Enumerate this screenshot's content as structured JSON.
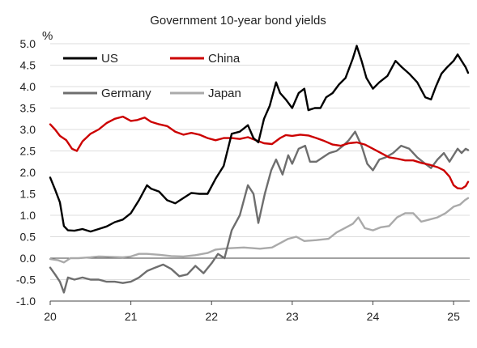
{
  "chart_data": {
    "type": "line",
    "title": "Government 10-year bond yields",
    "ylabel": "%",
    "ylim": [
      -1.0,
      5.0
    ],
    "yticks": [
      -1.0,
      -0.5,
      0.0,
      0.5,
      1.0,
      1.5,
      2.0,
      2.5,
      3.0,
      3.5,
      4.0,
      4.5,
      5.0
    ],
    "ytick_labels": [
      "-1.0",
      "-0.5",
      "0.0",
      "0.5",
      "1.0",
      "1.5",
      "2.0",
      "2.5",
      "3.0",
      "3.5",
      "4.0",
      "4.5",
      "5.0"
    ],
    "xlim": [
      2020.0,
      2025.2
    ],
    "xticks": [
      2020,
      2021,
      2022,
      2023,
      2024,
      2025
    ],
    "xtick_labels": [
      "20",
      "21",
      "22",
      "23",
      "24",
      "25"
    ],
    "grid": "horizontal",
    "legend_placement": "top-left",
    "series": [
      {
        "name": "US",
        "color": "#000000",
        "points": [
          [
            2020.0,
            1.88
          ],
          [
            2020.06,
            1.6
          ],
          [
            2020.12,
            1.3
          ],
          [
            2020.17,
            0.75
          ],
          [
            2020.22,
            0.65
          ],
          [
            2020.3,
            0.64
          ],
          [
            2020.4,
            0.68
          ],
          [
            2020.5,
            0.62
          ],
          [
            2020.6,
            0.68
          ],
          [
            2020.7,
            0.74
          ],
          [
            2020.8,
            0.84
          ],
          [
            2020.9,
            0.9
          ],
          [
            2021.0,
            1.05
          ],
          [
            2021.1,
            1.35
          ],
          [
            2021.2,
            1.7
          ],
          [
            2021.25,
            1.62
          ],
          [
            2021.35,
            1.55
          ],
          [
            2021.45,
            1.35
          ],
          [
            2021.55,
            1.28
          ],
          [
            2021.65,
            1.4
          ],
          [
            2021.75,
            1.52
          ],
          [
            2021.85,
            1.5
          ],
          [
            2021.95,
            1.5
          ],
          [
            2022.05,
            1.85
          ],
          [
            2022.15,
            2.15
          ],
          [
            2022.25,
            2.9
          ],
          [
            2022.35,
            2.95
          ],
          [
            2022.45,
            3.1
          ],
          [
            2022.52,
            2.8
          ],
          [
            2022.58,
            2.7
          ],
          [
            2022.65,
            3.25
          ],
          [
            2022.72,
            3.55
          ],
          [
            2022.8,
            4.1
          ],
          [
            2022.85,
            3.85
          ],
          [
            2022.92,
            3.7
          ],
          [
            2023.0,
            3.5
          ],
          [
            2023.08,
            3.85
          ],
          [
            2023.15,
            3.95
          ],
          [
            2023.2,
            3.45
          ],
          [
            2023.28,
            3.5
          ],
          [
            2023.35,
            3.5
          ],
          [
            2023.42,
            3.75
          ],
          [
            2023.5,
            3.85
          ],
          [
            2023.58,
            4.05
          ],
          [
            2023.66,
            4.2
          ],
          [
            2023.75,
            4.65
          ],
          [
            2023.8,
            4.95
          ],
          [
            2023.86,
            4.6
          ],
          [
            2023.92,
            4.2
          ],
          [
            2024.0,
            3.95
          ],
          [
            2024.08,
            4.1
          ],
          [
            2024.18,
            4.25
          ],
          [
            2024.28,
            4.6
          ],
          [
            2024.36,
            4.45
          ],
          [
            2024.45,
            4.3
          ],
          [
            2024.55,
            4.1
          ],
          [
            2024.65,
            3.75
          ],
          [
            2024.72,
            3.7
          ],
          [
            2024.78,
            4.0
          ],
          [
            2024.85,
            4.3
          ],
          [
            2024.92,
            4.45
          ],
          [
            2025.0,
            4.6
          ],
          [
            2025.05,
            4.75
          ],
          [
            2025.1,
            4.6
          ],
          [
            2025.15,
            4.45
          ],
          [
            2025.18,
            4.32
          ]
        ]
      },
      {
        "name": "China",
        "color": "#cc0000",
        "points": [
          [
            2020.0,
            3.12
          ],
          [
            2020.06,
            3.0
          ],
          [
            2020.12,
            2.85
          ],
          [
            2020.2,
            2.75
          ],
          [
            2020.27,
            2.55
          ],
          [
            2020.33,
            2.5
          ],
          [
            2020.4,
            2.72
          ],
          [
            2020.5,
            2.9
          ],
          [
            2020.6,
            3.0
          ],
          [
            2020.7,
            3.15
          ],
          [
            2020.8,
            3.25
          ],
          [
            2020.9,
            3.3
          ],
          [
            2021.0,
            3.2
          ],
          [
            2021.08,
            3.22
          ],
          [
            2021.17,
            3.28
          ],
          [
            2021.25,
            3.18
          ],
          [
            2021.35,
            3.12
          ],
          [
            2021.45,
            3.08
          ],
          [
            2021.55,
            2.95
          ],
          [
            2021.65,
            2.88
          ],
          [
            2021.75,
            2.92
          ],
          [
            2021.85,
            2.88
          ],
          [
            2021.95,
            2.8
          ],
          [
            2022.05,
            2.75
          ],
          [
            2022.15,
            2.8
          ],
          [
            2022.25,
            2.8
          ],
          [
            2022.35,
            2.78
          ],
          [
            2022.45,
            2.82
          ],
          [
            2022.55,
            2.75
          ],
          [
            2022.65,
            2.68
          ],
          [
            2022.75,
            2.66
          ],
          [
            2022.85,
            2.8
          ],
          [
            2022.92,
            2.87
          ],
          [
            2023.0,
            2.85
          ],
          [
            2023.1,
            2.88
          ],
          [
            2023.2,
            2.86
          ],
          [
            2023.3,
            2.8
          ],
          [
            2023.4,
            2.73
          ],
          [
            2023.5,
            2.65
          ],
          [
            2023.6,
            2.62
          ],
          [
            2023.7,
            2.68
          ],
          [
            2023.8,
            2.7
          ],
          [
            2023.9,
            2.65
          ],
          [
            2024.0,
            2.55
          ],
          [
            2024.1,
            2.45
          ],
          [
            2024.2,
            2.35
          ],
          [
            2024.3,
            2.32
          ],
          [
            2024.4,
            2.28
          ],
          [
            2024.5,
            2.28
          ],
          [
            2024.6,
            2.22
          ],
          [
            2024.7,
            2.18
          ],
          [
            2024.8,
            2.12
          ],
          [
            2024.88,
            2.05
          ],
          [
            2024.95,
            1.9
          ],
          [
            2025.0,
            1.7
          ],
          [
            2025.05,
            1.63
          ],
          [
            2025.1,
            1.62
          ],
          [
            2025.15,
            1.68
          ],
          [
            2025.18,
            1.78
          ]
        ]
      },
      {
        "name": "Germany",
        "color": "#6e6e6e",
        "points": [
          [
            2020.0,
            -0.22
          ],
          [
            2020.06,
            -0.38
          ],
          [
            2020.12,
            -0.55
          ],
          [
            2020.17,
            -0.8
          ],
          [
            2020.22,
            -0.45
          ],
          [
            2020.3,
            -0.5
          ],
          [
            2020.4,
            -0.45
          ],
          [
            2020.5,
            -0.5
          ],
          [
            2020.6,
            -0.5
          ],
          [
            2020.7,
            -0.55
          ],
          [
            2020.8,
            -0.55
          ],
          [
            2020.9,
            -0.58
          ],
          [
            2021.0,
            -0.55
          ],
          [
            2021.1,
            -0.45
          ],
          [
            2021.2,
            -0.3
          ],
          [
            2021.3,
            -0.22
          ],
          [
            2021.4,
            -0.15
          ],
          [
            2021.5,
            -0.25
          ],
          [
            2021.6,
            -0.42
          ],
          [
            2021.7,
            -0.38
          ],
          [
            2021.8,
            -0.18
          ],
          [
            2021.9,
            -0.35
          ],
          [
            2022.0,
            -0.12
          ],
          [
            2022.08,
            0.1
          ],
          [
            2022.16,
            0.0
          ],
          [
            2022.25,
            0.65
          ],
          [
            2022.35,
            1.0
          ],
          [
            2022.45,
            1.7
          ],
          [
            2022.52,
            1.5
          ],
          [
            2022.58,
            0.82
          ],
          [
            2022.66,
            1.5
          ],
          [
            2022.74,
            2.05
          ],
          [
            2022.8,
            2.3
          ],
          [
            2022.88,
            1.95
          ],
          [
            2022.95,
            2.4
          ],
          [
            2023.0,
            2.2
          ],
          [
            2023.08,
            2.55
          ],
          [
            2023.16,
            2.62
          ],
          [
            2023.22,
            2.25
          ],
          [
            2023.3,
            2.25
          ],
          [
            2023.38,
            2.35
          ],
          [
            2023.46,
            2.45
          ],
          [
            2023.55,
            2.5
          ],
          [
            2023.63,
            2.62
          ],
          [
            2023.7,
            2.75
          ],
          [
            2023.78,
            2.95
          ],
          [
            2023.86,
            2.62
          ],
          [
            2023.93,
            2.2
          ],
          [
            2024.0,
            2.05
          ],
          [
            2024.08,
            2.3
          ],
          [
            2024.16,
            2.35
          ],
          [
            2024.25,
            2.45
          ],
          [
            2024.35,
            2.62
          ],
          [
            2024.45,
            2.55
          ],
          [
            2024.55,
            2.35
          ],
          [
            2024.65,
            2.2
          ],
          [
            2024.72,
            2.1
          ],
          [
            2024.8,
            2.3
          ],
          [
            2024.88,
            2.45
          ],
          [
            2024.95,
            2.25
          ],
          [
            2025.0,
            2.4
          ],
          [
            2025.05,
            2.55
          ],
          [
            2025.1,
            2.45
          ],
          [
            2025.15,
            2.55
          ],
          [
            2025.18,
            2.52
          ]
        ]
      },
      {
        "name": "Japan",
        "color": "#aaaaaa",
        "points": [
          [
            2020.0,
            -0.02
          ],
          [
            2020.1,
            -0.05
          ],
          [
            2020.17,
            -0.1
          ],
          [
            2020.25,
            0.0
          ],
          [
            2020.35,
            0.0
          ],
          [
            2020.5,
            0.02
          ],
          [
            2020.6,
            0.04
          ],
          [
            2020.75,
            0.03
          ],
          [
            2020.9,
            0.02
          ],
          [
            2021.0,
            0.04
          ],
          [
            2021.1,
            0.1
          ],
          [
            2021.2,
            0.1
          ],
          [
            2021.35,
            0.08
          ],
          [
            2021.5,
            0.05
          ],
          [
            2021.65,
            0.04
          ],
          [
            2021.8,
            0.07
          ],
          [
            2021.95,
            0.12
          ],
          [
            2022.05,
            0.2
          ],
          [
            2022.2,
            0.23
          ],
          [
            2022.4,
            0.25
          ],
          [
            2022.6,
            0.22
          ],
          [
            2022.75,
            0.25
          ],
          [
            2022.85,
            0.35
          ],
          [
            2022.95,
            0.45
          ],
          [
            2023.05,
            0.5
          ],
          [
            2023.15,
            0.4
          ],
          [
            2023.3,
            0.42
          ],
          [
            2023.45,
            0.45
          ],
          [
            2023.55,
            0.6
          ],
          [
            2023.65,
            0.7
          ],
          [
            2023.75,
            0.8
          ],
          [
            2023.82,
            0.95
          ],
          [
            2023.9,
            0.7
          ],
          [
            2024.0,
            0.65
          ],
          [
            2024.1,
            0.72
          ],
          [
            2024.2,
            0.75
          ],
          [
            2024.3,
            0.95
          ],
          [
            2024.4,
            1.05
          ],
          [
            2024.5,
            1.05
          ],
          [
            2024.6,
            0.85
          ],
          [
            2024.7,
            0.9
          ],
          [
            2024.8,
            0.95
          ],
          [
            2024.9,
            1.05
          ],
          [
            2025.0,
            1.2
          ],
          [
            2025.08,
            1.25
          ],
          [
            2025.14,
            1.35
          ],
          [
            2025.18,
            1.4
          ]
        ]
      }
    ]
  }
}
